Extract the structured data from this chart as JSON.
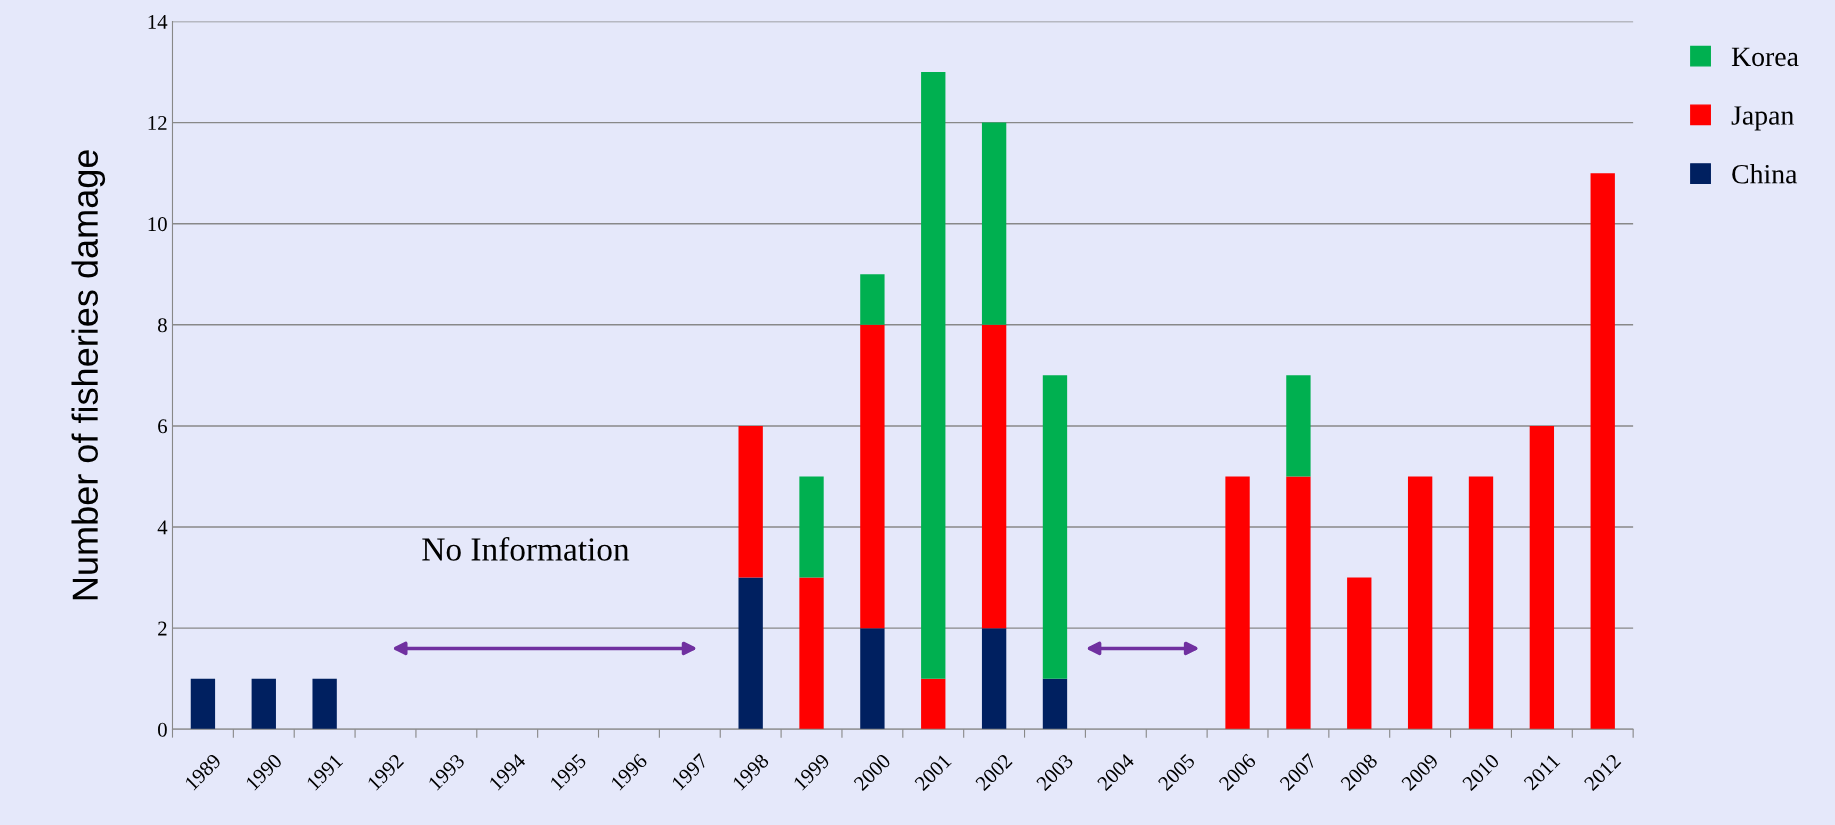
{
  "chart_data": {
    "type": "bar",
    "stacked": true,
    "ylabel": "Number of fisheries damage",
    "categories": [
      "1989",
      "1990",
      "1991",
      "1992",
      "1993",
      "1994",
      "1995",
      "1996",
      "1997",
      "1998",
      "1999",
      "2000",
      "2001",
      "2002",
      "2003",
      "2004",
      "2005",
      "2006",
      "2007",
      "2008",
      "2009",
      "2010",
      "2011",
      "2012"
    ],
    "series": [
      {
        "name": "China",
        "color": "#002060",
        "values": [
          1,
          1,
          1,
          null,
          null,
          null,
          null,
          null,
          null,
          3,
          0,
          2,
          0,
          2,
          1,
          null,
          null,
          0,
          0,
          0,
          0,
          0,
          0,
          0
        ]
      },
      {
        "name": "Japan",
        "color": "#ff0000",
        "values": [
          0,
          0,
          0,
          null,
          null,
          null,
          null,
          null,
          null,
          3,
          3,
          6,
          1,
          6,
          0,
          null,
          null,
          5,
          5,
          3,
          5,
          5,
          6,
          11
        ]
      },
      {
        "name": "Korea",
        "color": "#00b050",
        "values": [
          0,
          0,
          0,
          null,
          null,
          null,
          null,
          null,
          null,
          0,
          2,
          1,
          12,
          4,
          6,
          null,
          null,
          0,
          2,
          0,
          0,
          0,
          0,
          0
        ]
      }
    ],
    "ylim": [
      0,
      14
    ],
    "yticks": [
      0,
      2,
      4,
      6,
      8,
      10,
      12,
      14
    ],
    "grid": "y",
    "legend": "top right",
    "annotations": [
      "No Information"
    ]
  }
}
